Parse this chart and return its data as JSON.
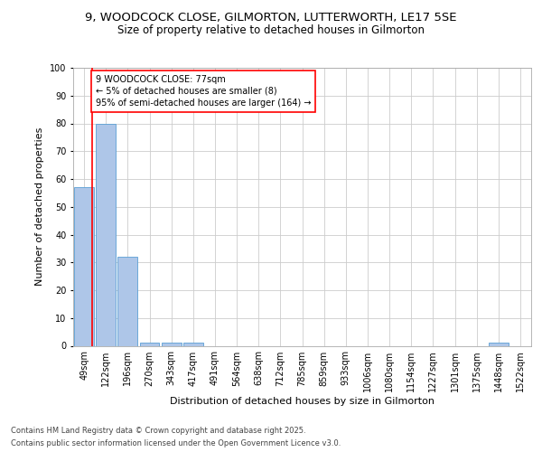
{
  "title1": "9, WOODCOCK CLOSE, GILMORTON, LUTTERWORTH, LE17 5SE",
  "title2": "Size of property relative to detached houses in Gilmorton",
  "xlabel": "Distribution of detached houses by size in Gilmorton",
  "ylabel": "Number of detached properties",
  "categories": [
    "49sqm",
    "122sqm",
    "196sqm",
    "270sqm",
    "343sqm",
    "417sqm",
    "491sqm",
    "564sqm",
    "638sqm",
    "712sqm",
    "785sqm",
    "859sqm",
    "933sqm",
    "1006sqm",
    "1080sqm",
    "1154sqm",
    "1227sqm",
    "1301sqm",
    "1375sqm",
    "1448sqm",
    "1522sqm"
  ],
  "values": [
    57,
    80,
    32,
    1,
    1,
    1,
    0,
    0,
    0,
    0,
    0,
    0,
    0,
    0,
    0,
    0,
    0,
    0,
    0,
    1,
    0
  ],
  "bar_color": "#aec6e8",
  "bar_edge_color": "#5a9fd4",
  "annotation_text": "9 WOODCOCK CLOSE: 77sqm\n← 5% of detached houses are smaller (8)\n95% of semi-detached houses are larger (164) →",
  "ylim": [
    0,
    100
  ],
  "yticks": [
    0,
    10,
    20,
    30,
    40,
    50,
    60,
    70,
    80,
    90,
    100
  ],
  "grid_color": "#cccccc",
  "background_color": "white",
  "footer1": "Contains HM Land Registry data © Crown copyright and database right 2025.",
  "footer2": "Contains public sector information licensed under the Open Government Licence v3.0.",
  "title_fontsize": 9.5,
  "subtitle_fontsize": 8.5,
  "axis_label_fontsize": 8,
  "tick_fontsize": 7,
  "annotation_fontsize": 7,
  "footer_fontsize": 6
}
